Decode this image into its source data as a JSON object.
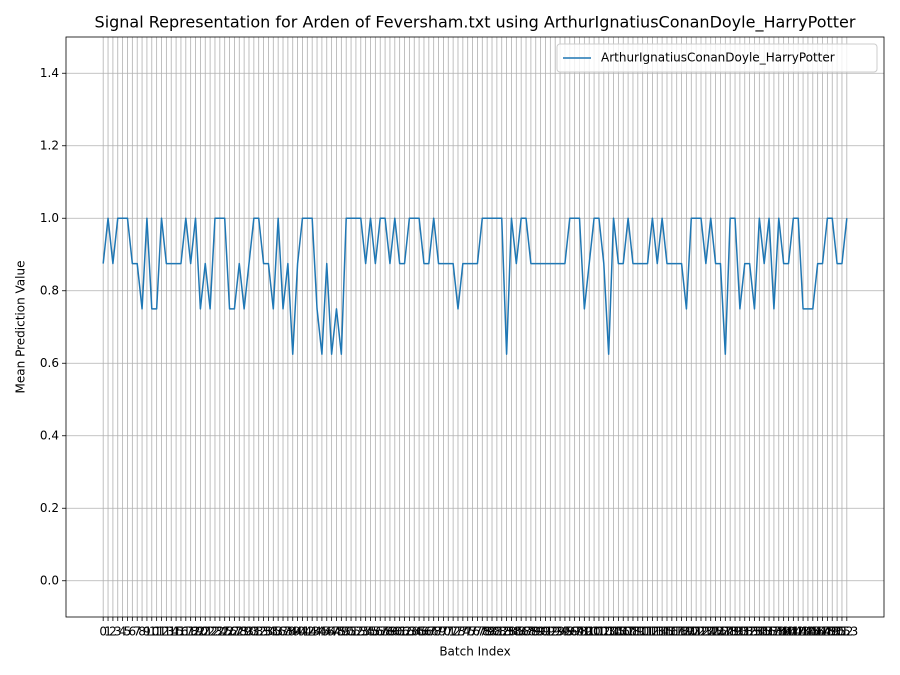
{
  "chart_data": {
    "type": "line",
    "title": "Signal Representation for Arden of Feversham.txt using ArthurIgnatiusConanDoyle_HarryPotter",
    "x_label": "Batch Index",
    "y_label": "Mean Prediction Value",
    "x": [
      0,
      1,
      2,
      3,
      4,
      5,
      6,
      7,
      8,
      9,
      10,
      11,
      12,
      13,
      14,
      15,
      16,
      17,
      18,
      19,
      20,
      21,
      22,
      23,
      24,
      25,
      26,
      27,
      28,
      29,
      30,
      31,
      32,
      33,
      34,
      35,
      36,
      37,
      38,
      39,
      40,
      41,
      42,
      43,
      44,
      45,
      46,
      47,
      48,
      49,
      50,
      51,
      52,
      53,
      54,
      55,
      56,
      57,
      58,
      59,
      60,
      61,
      62,
      63,
      64,
      65,
      66,
      67,
      68,
      69,
      70,
      71,
      72,
      73,
      74,
      75,
      76,
      77,
      78,
      79,
      80,
      81,
      82,
      83,
      84,
      85,
      86,
      87,
      88,
      89,
      90,
      91,
      92,
      93,
      94,
      95,
      96,
      97,
      98,
      99,
      100,
      101,
      102,
      103,
      104,
      105,
      106,
      107,
      108,
      109,
      110,
      111,
      112,
      113,
      114,
      115,
      116,
      117,
      118,
      119,
      120,
      121,
      122,
      123,
      124,
      125,
      126,
      127,
      128,
      129,
      130,
      131,
      132,
      133,
      134,
      135,
      136,
      137,
      138,
      139,
      140,
      141,
      142,
      143,
      144,
      145,
      146,
      147,
      148,
      149,
      150,
      151,
      152,
      153
    ],
    "series": [
      {
        "name": "ArthurIgnatiusConanDoyle_HarryPotter",
        "color": "#1f77b4",
        "values": [
          0.875,
          1,
          0.875,
          1,
          1,
          1,
          0.875,
          0.875,
          0.75,
          1,
          0.75,
          0.75,
          1,
          0.875,
          0.875,
          0.875,
          0.875,
          1,
          0.875,
          1,
          0.75,
          0.875,
          0.75,
          1,
          1,
          1,
          0.75,
          0.75,
          0.875,
          0.75,
          0.875,
          1,
          1,
          0.875,
          0.875,
          0.75,
          1,
          0.75,
          0.875,
          0.625,
          0.875,
          1,
          1,
          1,
          0.75,
          0.625,
          0.875,
          0.625,
          0.75,
          0.625,
          1,
          1,
          1,
          1,
          0.875,
          1,
          0.875,
          1,
          1,
          0.875,
          1,
          0.875,
          0.875,
          1,
          1,
          1,
          0.875,
          0.875,
          1,
          0.875,
          0.875,
          0.875,
          0.875,
          0.75,
          0.875,
          0.875,
          0.875,
          0.875,
          1,
          1,
          1,
          1,
          1,
          0.625,
          1,
          0.875,
          1,
          1,
          0.875,
          0.875,
          0.875,
          0.875,
          0.875,
          0.875,
          0.875,
          0.875,
          1,
          1,
          1,
          0.75,
          0.875,
          1,
          1,
          0.875,
          0.625,
          1,
          0.875,
          0.875,
          1,
          0.875,
          0.875,
          0.875,
          0.875,
          1,
          0.875,
          1,
          0.875,
          0.875,
          0.875,
          0.875,
          0.75,
          1,
          1,
          1,
          0.875,
          1,
          0.875,
          0.875,
          0.625,
          1,
          1,
          0.75,
          0.875,
          0.875,
          0.75,
          1,
          0.875,
          1,
          0.75,
          1,
          0.875,
          0.875,
          1,
          1,
          0.75,
          0.75,
          0.75,
          0.875,
          0.875,
          1,
          1,
          0.875,
          0.875,
          1
        ]
      }
    ],
    "xlim": [
      -7.65,
      160.65
    ],
    "xticks": [
      0,
      1,
      2,
      3,
      4,
      5,
      6,
      7,
      8,
      9,
      10,
      11,
      12,
      13,
      14,
      15,
      16,
      17,
      18,
      19,
      20,
      21,
      22,
      23,
      24,
      25,
      26,
      27,
      28,
      29,
      30,
      31,
      32,
      33,
      34,
      35,
      36,
      37,
      38,
      39,
      40,
      41,
      42,
      43,
      44,
      45,
      46,
      47,
      48,
      49,
      50,
      51,
      52,
      53,
      54,
      55,
      56,
      57,
      58,
      59,
      60,
      61,
      62,
      63,
      64,
      65,
      66,
      67,
      68,
      69,
      70,
      71,
      72,
      73,
      74,
      75,
      76,
      77,
      78,
      79,
      80,
      81,
      82,
      83,
      84,
      85,
      86,
      87,
      88,
      89,
      90,
      91,
      92,
      93,
      94,
      95,
      96,
      97,
      98,
      99,
      100,
      101,
      102,
      103,
      104,
      105,
      106,
      107,
      108,
      109,
      110,
      111,
      112,
      113,
      114,
      115,
      116,
      117,
      118,
      119,
      120,
      121,
      122,
      123,
      124,
      125,
      126,
      127,
      128,
      129,
      130,
      131,
      132,
      133,
      134,
      135,
      136,
      137,
      138,
      139,
      140,
      141,
      142,
      143,
      144,
      145,
      146,
      147,
      148,
      149,
      150,
      151,
      152,
      153
    ],
    "ylim": [
      -0.1,
      1.5
    ],
    "yticks": [
      {
        "value": 0,
        "label": "0.0"
      },
      {
        "value": 0.2,
        "label": "0.2"
      },
      {
        "value": 0.4,
        "label": "0.4"
      },
      {
        "value": 0.6,
        "label": "0.6"
      },
      {
        "value": 0.8,
        "label": "0.8"
      },
      {
        "value": 1,
        "label": "1.0"
      },
      {
        "value": 1.2,
        "label": "1.2"
      },
      {
        "value": 1.4,
        "label": "1.4"
      }
    ],
    "grid": true,
    "legend": "upper right"
  }
}
